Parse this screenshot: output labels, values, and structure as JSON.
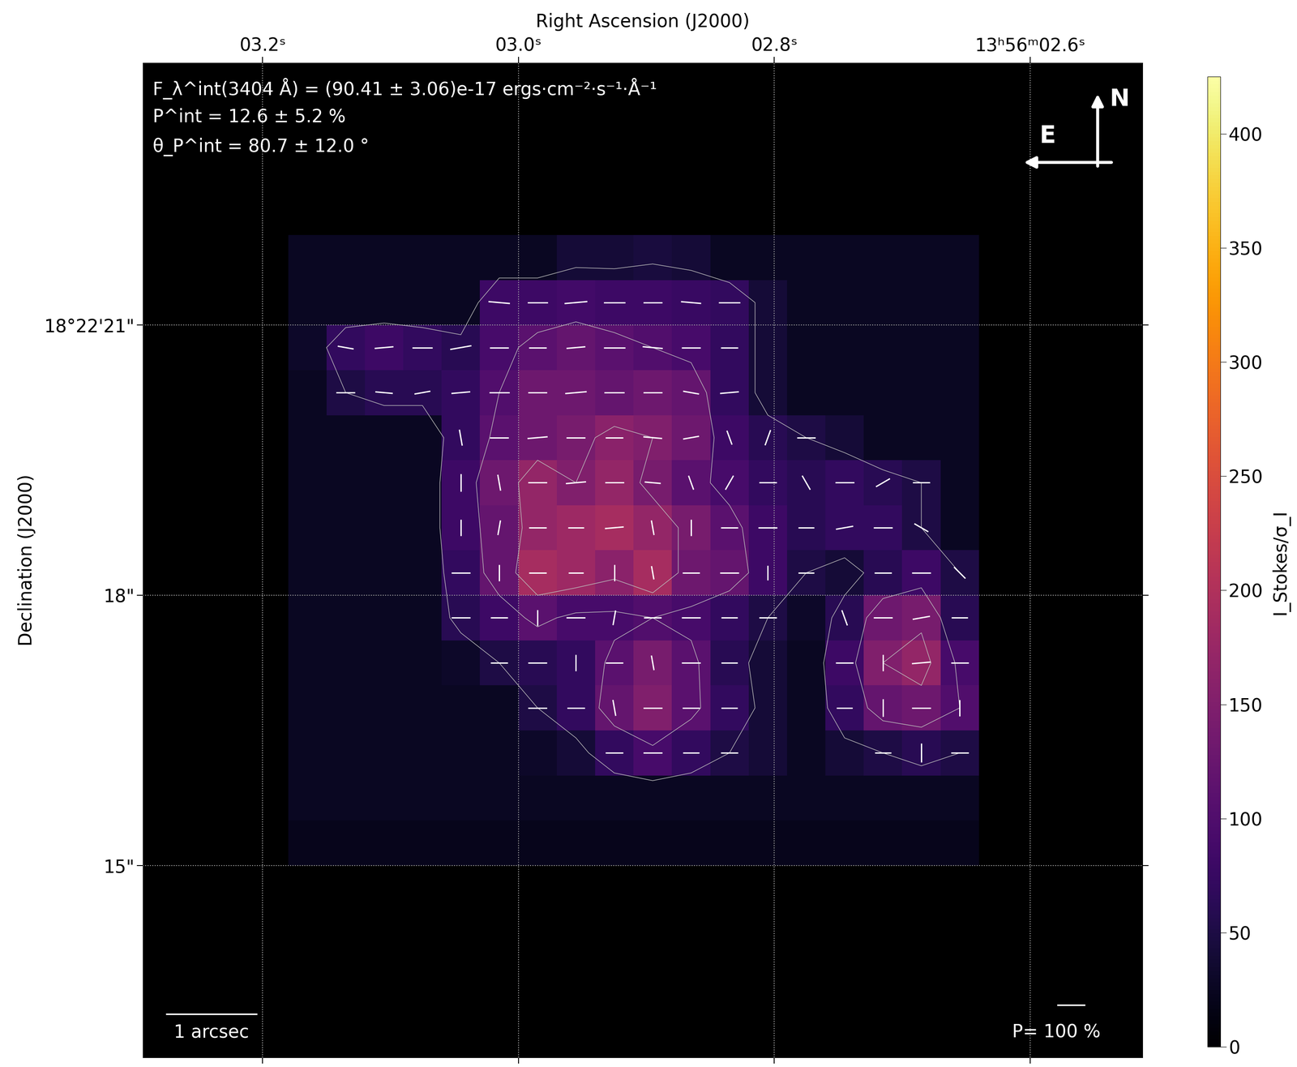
{
  "chart_data": {
    "type": "polarization_map",
    "xlabel": "Right Ascension (J2000)",
    "ylabel": "Declination (J2000)",
    "xlim": [
      3.2937,
      2.512
    ],
    "ylim": [
      12.87,
      23.91
    ],
    "xticks": [
      {
        "value": 3.2,
        "label": "03.2ˢ"
      },
      {
        "value": 3.0,
        "label": "03.0ˢ"
      },
      {
        "value": 2.8,
        "label": "02.8ˢ"
      },
      {
        "value": 2.6,
        "label": "13ʰ56ᵐ02.6ˢ"
      }
    ],
    "yticks": [
      {
        "value": 21,
        "label": "18°22'21\""
      },
      {
        "value": 18,
        "label": "18\""
      },
      {
        "value": 15,
        "label": "15\""
      }
    ],
    "grid": true,
    "color": "inferno",
    "annotations": [
      "F_λ^int(3404 Å) = (90.41 ± 3.06)e-17 ergs·cm⁻²·s⁻¹·Å⁻¹",
      "P^int = 12.6 ± 5.2 %",
      "θ_P^int = 80.7 ± 12.0 °"
    ],
    "compass": {
      "north": "N",
      "east": "E"
    },
    "scale_bar": {
      "label": "1 arcsec",
      "value": 1
    },
    "pol_scale": {
      "label": "P= 100 %",
      "value": 100
    },
    "colorbar": {
      "label": "I_Stokes/σ_I",
      "range": [
        0,
        425
      ],
      "ticks": [
        0,
        50,
        100,
        150,
        200,
        250,
        300,
        350,
        400
      ]
    },
    "cells_ra": [
      3.18,
      2.64
    ],
    "cells_dec": [
      22.0,
      15.0
    ],
    "contour_levels": [
      50,
      100,
      150
    ],
    "cells": [
      [
        25,
        25,
        25,
        25,
        25,
        25,
        25,
        40,
        40,
        45,
        40,
        25,
        25,
        25,
        25,
        25,
        25,
        25
      ],
      [
        25,
        25,
        25,
        25,
        25,
        80,
        80,
        85,
        80,
        80,
        75,
        70,
        40,
        25,
        25,
        25,
        25,
        25
      ],
      [
        30,
        70,
        80,
        70,
        60,
        90,
        110,
        120,
        110,
        100,
        90,
        70,
        40,
        25,
        25,
        25,
        25,
        25
      ],
      [
        25,
        50,
        60,
        60,
        70,
        100,
        130,
        130,
        120,
        130,
        120,
        70,
        40,
        25,
        25,
        25,
        25,
        25
      ],
      [
        25,
        25,
        25,
        25,
        70,
        110,
        130,
        140,
        160,
        150,
        130,
        80,
        60,
        50,
        40,
        25,
        25,
        25
      ],
      [
        25,
        25,
        25,
        25,
        80,
        130,
        170,
        150,
        170,
        140,
        110,
        90,
        70,
        60,
        70,
        60,
        50,
        25
      ],
      [
        25,
        25,
        25,
        25,
        80,
        120,
        170,
        180,
        190,
        170,
        140,
        110,
        80,
        60,
        70,
        70,
        50,
        25
      ],
      [
        25,
        25,
        25,
        25,
        70,
        120,
        190,
        180,
        160,
        190,
        130,
        120,
        80,
        50,
        40,
        60,
        80,
        50
      ],
      [
        25,
        25,
        25,
        25,
        60,
        80,
        110,
        90,
        90,
        100,
        90,
        70,
        50,
        30,
        60,
        130,
        140,
        60
      ],
      [
        25,
        25,
        25,
        25,
        30,
        50,
        60,
        70,
        110,
        140,
        110,
        60,
        40,
        25,
        80,
        150,
        170,
        90
      ],
      [
        25,
        25,
        25,
        25,
        25,
        25,
        50,
        70,
        120,
        150,
        110,
        70,
        40,
        25,
        70,
        120,
        130,
        100
      ],
      [
        25,
        25,
        25,
        25,
        25,
        25,
        30,
        40,
        70,
        90,
        70,
        50,
        40,
        25,
        40,
        50,
        60,
        50
      ],
      [
        25,
        25,
        25,
        25,
        25,
        25,
        25,
        25,
        25,
        25,
        25,
        25,
        25,
        25,
        25,
        25,
        25,
        25
      ],
      [
        20,
        20,
        20,
        20,
        20,
        20,
        20,
        20,
        20,
        20,
        20,
        20,
        20,
        20,
        20,
        20,
        20,
        20
      ]
    ],
    "pol_angle": [
      [
        null,
        null,
        null,
        null,
        null,
        null,
        null,
        null,
        null,
        null,
        null,
        null,
        null,
        null,
        null,
        null,
        null,
        null
      ],
      [
        null,
        null,
        null,
        null,
        null,
        85,
        90,
        95,
        90,
        90,
        85,
        90,
        null,
        null,
        null,
        null,
        null,
        null
      ],
      [
        null,
        80,
        95,
        90,
        100,
        90,
        90,
        95,
        90,
        85,
        90,
        90,
        null,
        null,
        null,
        null,
        null,
        null
      ],
      [
        null,
        90,
        85,
        100,
        95,
        90,
        90,
        95,
        90,
        90,
        80,
        95,
        null,
        null,
        null,
        null,
        null,
        null
      ],
      [
        null,
        null,
        null,
        null,
        10,
        90,
        95,
        90,
        90,
        85,
        100,
        20,
        160,
        90,
        null,
        null,
        null,
        null
      ],
      [
        null,
        null,
        null,
        null,
        0,
        10,
        90,
        95,
        90,
        85,
        20,
        150,
        90,
        30,
        90,
        120,
        90,
        null
      ],
      [
        null,
        null,
        null,
        null,
        0,
        170,
        90,
        90,
        95,
        10,
        0,
        90,
        90,
        90,
        100,
        90,
        60,
        null
      ],
      [
        null,
        null,
        null,
        null,
        90,
        0,
        90,
        90,
        0,
        10,
        90,
        90,
        0,
        90,
        null,
        90,
        90,
        45
      ],
      [
        null,
        null,
        null,
        null,
        90,
        90,
        0,
        90,
        170,
        90,
        90,
        90,
        90,
        null,
        20,
        90,
        100,
        90
      ],
      [
        null,
        null,
        null,
        null,
        null,
        90,
        90,
        0,
        90,
        10,
        90,
        90,
        null,
        null,
        90,
        0,
        95,
        90
      ],
      [
        null,
        null,
        null,
        null,
        null,
        null,
        90,
        90,
        10,
        90,
        90,
        90,
        null,
        null,
        90,
        0,
        90,
        0
      ],
      [
        null,
        null,
        null,
        null,
        null,
        null,
        null,
        null,
        90,
        90,
        90,
        90,
        null,
        null,
        null,
        90,
        0,
        90
      ],
      [
        null,
        null,
        null,
        null,
        null,
        null,
        null,
        null,
        null,
        null,
        null,
        null,
        null,
        null,
        null,
        null,
        null,
        null
      ],
      [
        null,
        null,
        null,
        null,
        null,
        null,
        null,
        null,
        null,
        null,
        null,
        null,
        null,
        null,
        null,
        null,
        null,
        null
      ]
    ],
    "pol_degree": [
      [
        null,
        null,
        null,
        null,
        null,
        null,
        null,
        null,
        null,
        null,
        null,
        null,
        null,
        null,
        null,
        null,
        null,
        null
      ],
      [
        null,
        null,
        null,
        null,
        null,
        80,
        75,
        85,
        80,
        70,
        75,
        80,
        null,
        null,
        null,
        null,
        null,
        null
      ],
      [
        null,
        60,
        70,
        75,
        80,
        70,
        65,
        70,
        80,
        75,
        70,
        65,
        null,
        null,
        null,
        null,
        null,
        null
      ],
      [
        null,
        70,
        65,
        60,
        70,
        75,
        70,
        80,
        75,
        70,
        60,
        70,
        null,
        null,
        null,
        null,
        null,
        null
      ],
      [
        null,
        null,
        null,
        null,
        60,
        70,
        75,
        70,
        65,
        70,
        60,
        55,
        60,
        70,
        null,
        null,
        null,
        null
      ],
      [
        null,
        null,
        null,
        null,
        65,
        60,
        70,
        75,
        70,
        60,
        55,
        60,
        65,
        60,
        70,
        60,
        65,
        null
      ],
      [
        null,
        null,
        null,
        null,
        60,
        55,
        65,
        60,
        70,
        55,
        60,
        65,
        70,
        60,
        65,
        70,
        60,
        null
      ],
      [
        null,
        null,
        null,
        null,
        70,
        60,
        65,
        55,
        60,
        50,
        65,
        70,
        55,
        60,
        null,
        65,
        70,
        60
      ],
      [
        null,
        null,
        null,
        null,
        70,
        65,
        60,
        70,
        55,
        65,
        70,
        60,
        65,
        null,
        60,
        70,
        65,
        60
      ],
      [
        null,
        null,
        null,
        null,
        null,
        65,
        70,
        60,
        65,
        55,
        70,
        60,
        null,
        null,
        65,
        60,
        70,
        65
      ],
      [
        null,
        null,
        null,
        null,
        null,
        null,
        70,
        65,
        60,
        70,
        65,
        60,
        null,
        null,
        60,
        65,
        70,
        60
      ],
      [
        null,
        null,
        null,
        null,
        null,
        null,
        null,
        null,
        65,
        70,
        60,
        65,
        null,
        null,
        null,
        60,
        70,
        65
      ],
      [
        null,
        null,
        null,
        null,
        null,
        null,
        null,
        null,
        null,
        null,
        null,
        null,
        null,
        null,
        null,
        null,
        null,
        null
      ],
      [
        null,
        null,
        null,
        null,
        null,
        null,
        null,
        null,
        null,
        null,
        null,
        null,
        null,
        null,
        null,
        null,
        null,
        null
      ]
    ]
  }
}
